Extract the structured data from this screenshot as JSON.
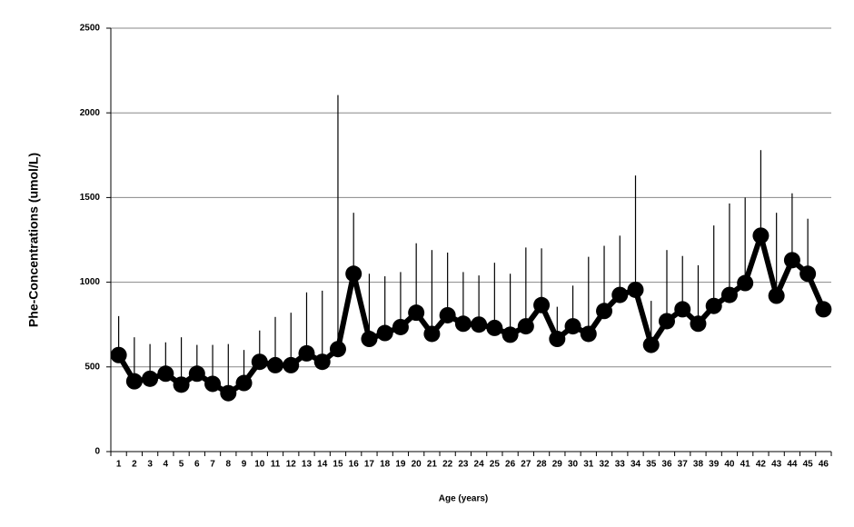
{
  "chart_data": {
    "type": "line",
    "x_label": "Age (years)",
    "y_label": "Phe-Concentrations  (umol/L)",
    "categories": [
      1,
      2,
      3,
      4,
      5,
      6,
      7,
      8,
      9,
      10,
      11,
      12,
      13,
      14,
      15,
      16,
      17,
      18,
      19,
      20,
      21,
      22,
      23,
      24,
      25,
      26,
      27,
      28,
      29,
      30,
      31,
      32,
      33,
      34,
      35,
      36,
      37,
      38,
      39,
      40,
      41,
      42,
      43,
      44,
      45,
      46
    ],
    "values": [
      570,
      415,
      430,
      460,
      395,
      460,
      400,
      345,
      405,
      530,
      510,
      510,
      580,
      530,
      605,
      1050,
      665,
      700,
      735,
      820,
      695,
      805,
      755,
      750,
      730,
      690,
      740,
      865,
      665,
      740,
      695,
      830,
      925,
      955,
      630,
      770,
      840,
      755,
      860,
      925,
      995,
      1275,
      920,
      1130,
      1050,
      840
    ],
    "errors": [
      230,
      260,
      205,
      185,
      280,
      170,
      230,
      290,
      195,
      185,
      285,
      310,
      360,
      420,
      1500,
      360,
      385,
      335,
      325,
      410,
      495,
      370,
      305,
      290,
      385,
      360,
      465,
      335,
      190,
      240,
      455,
      385,
      350,
      675,
      260,
      420,
      315,
      345,
      475,
      540,
      505,
      505,
      490,
      395,
      325,
      null
    ],
    "color": "#000000",
    "ylim": [
      0,
      2500
    ],
    "yticks": [
      0,
      500,
      1000,
      1500,
      2000,
      2500
    ],
    "grid": true
  }
}
